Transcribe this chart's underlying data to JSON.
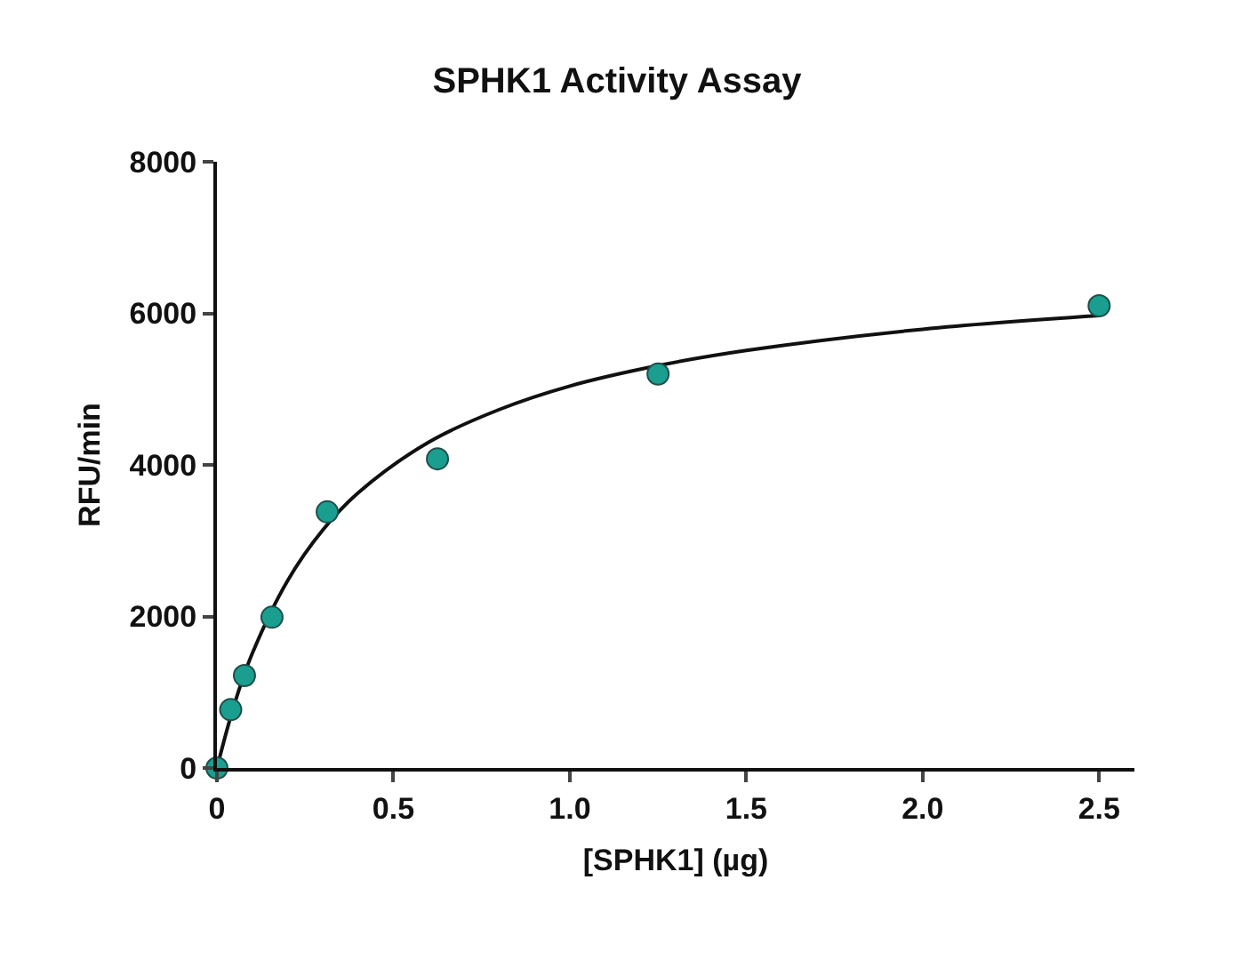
{
  "chart_data": {
    "type": "scatter",
    "title": "SPHK1 Activity Assay",
    "xlabel": "[SPHK1] (µg)",
    "ylabel": "RFU/min",
    "xlim": [
      0,
      2.6
    ],
    "xticks": [
      {
        "value": 0,
        "label": "0"
      },
      {
        "value": 0.5,
        "label": "0.5"
      },
      {
        "value": 1,
        "label": "1.0"
      },
      {
        "value": 1.5,
        "label": "1.5"
      },
      {
        "value": 2,
        "label": "2.0"
      },
      {
        "value": 2.5,
        "label": "2.5"
      }
    ],
    "ylim": [
      0,
      8000
    ],
    "yticks": [
      0,
      2000,
      4000,
      6000,
      8000
    ],
    "grid": false,
    "series": [
      {
        "color": "#1a9e8f",
        "marker": "circle",
        "x": [
          0,
          0.039,
          0.078,
          0.156,
          0.3125,
          0.625,
          1.25,
          2.5
        ],
        "values": [
          0,
          770,
          1220,
          1990,
          3380,
          4080,
          5200,
          6100
        ]
      },
      {
        "type": "line",
        "color": "#111111",
        "marker": "none",
        "line_style": "solid",
        "x": [
          0,
          0.05,
          0.1,
          0.2,
          0.3,
          0.4,
          0.6,
          0.8,
          1.0,
          1.25,
          1.5,
          2.0,
          2.5
        ],
        "values": [
          0,
          850,
          1510,
          2470,
          3140,
          3630,
          4300,
          4730,
          5040,
          5310,
          5510,
          5790,
          5970
        ]
      }
    ]
  }
}
